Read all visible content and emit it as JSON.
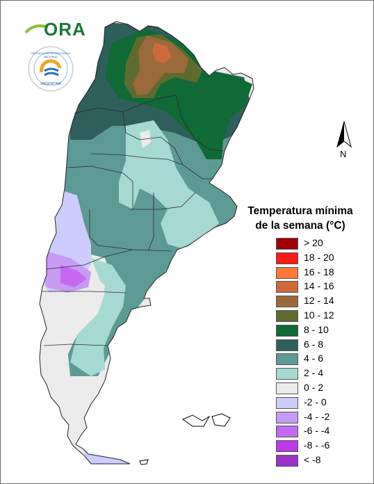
{
  "logos": {
    "ora_text": "ORA",
    "smn_text": "SERVICIO METEOROLÓGICO NACIONAL",
    "smn_country": "ARGENTINA"
  },
  "north_arrow": {
    "label": "N"
  },
  "legend": {
    "title_line1": "Temperatura mínima",
    "title_line2": "de la semana (°C)",
    "items": [
      {
        "label": "> 20",
        "color": "#a00000"
      },
      {
        "label": "18 - 20",
        "color": "#ff1a1a"
      },
      {
        "label": "16 - 18",
        "color": "#ff7a3a"
      },
      {
        "label": "14 - 16",
        "color": "#cc6a3a"
      },
      {
        "label": "12 - 14",
        "color": "#9a6a3a"
      },
      {
        "label": "10 - 12",
        "color": "#5f6b2e"
      },
      {
        "label": "8 - 10",
        "color": "#0f6a35"
      },
      {
        "label": "6 - 8",
        "color": "#2e5f5a"
      },
      {
        "label": "4 - 6",
        "color": "#5e9a94"
      },
      {
        "label": "2 - 4",
        "color": "#a6d9d2"
      },
      {
        "label": "0 - 2",
        "color": "#ebebeb"
      },
      {
        "label": "-2 - 0",
        "color": "#ccccff"
      },
      {
        "label": "-4 - -2",
        "color": "#c79af5"
      },
      {
        "label": "-6 - -4",
        "color": "#c46af0"
      },
      {
        "label": "-8 - -6",
        "color": "#bb3ae6"
      },
      {
        "label": "< -8",
        "color": "#9a32c8"
      }
    ]
  }
}
